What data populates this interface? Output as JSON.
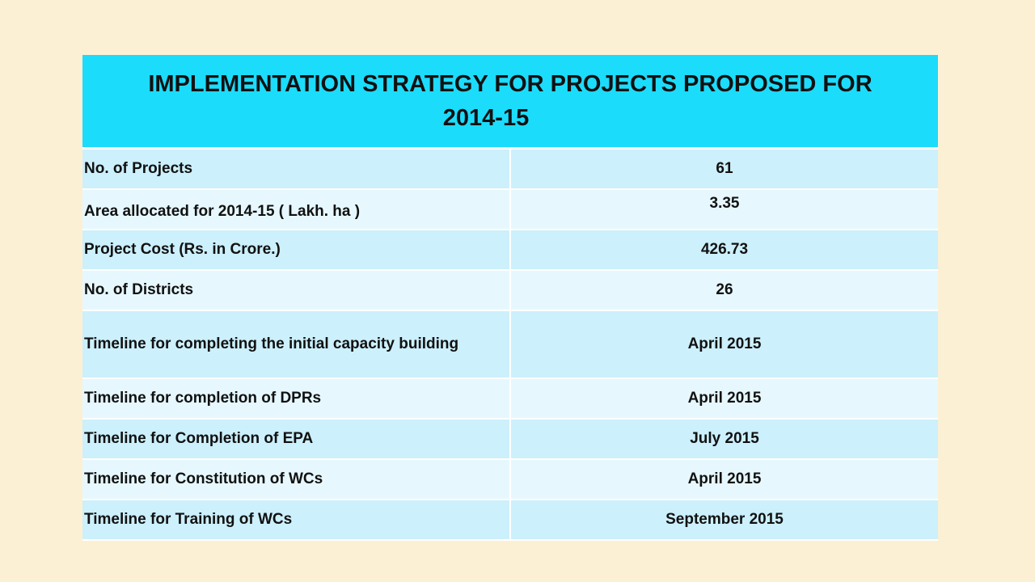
{
  "title": {
    "line1": "IMPLEMENTATION  STRATEGY  FOR PROJECTS PROPOSED FOR",
    "line2": "2014-15"
  },
  "rows": [
    {
      "label": "No. of Projects",
      "value": "61"
    },
    {
      "label": "Area allocated for 2014-15  ( Lakh. ha )",
      "value": "3.35"
    },
    {
      "label": "Project Cost (Rs. in Crore.)",
      "value": "426.73"
    },
    {
      "label": "No. of Districts",
      "value": "26"
    },
    {
      "label": "Timeline for completing the initial capacity building",
      "value": "April 2015"
    },
    {
      "label": "Timeline for completion of DPRs",
      "value": "April 2015"
    },
    {
      "label": "Timeline for  Completion of EPA",
      "value": "July 2015"
    },
    {
      "label": "Timeline for  Constitution of WCs",
      "value": "April 2015"
    },
    {
      "label": "Timeline for  Training of WCs",
      "value": "September 2015"
    }
  ]
}
